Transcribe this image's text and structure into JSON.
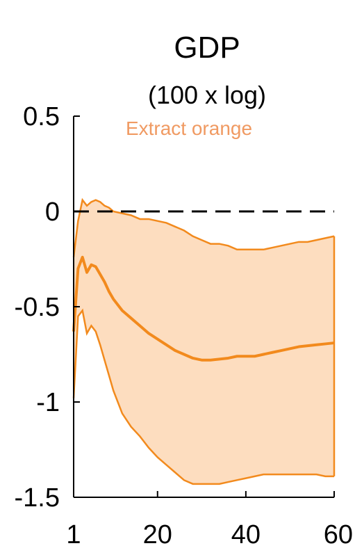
{
  "chart_data": {
    "type": "area",
    "title": "GDP",
    "subtitle": "(100 x log)",
    "xlabel": "",
    "ylabel": "",
    "xlim": [
      1,
      60
    ],
    "ylim": [
      -1.5,
      0.5
    ],
    "x_ticks": [
      {
        "value": 1,
        "label": "1"
      },
      {
        "value": 20,
        "label": "20"
      },
      {
        "value": 40,
        "label": "40"
      },
      {
        "value": 60,
        "label": "60"
      }
    ],
    "y_ticks": [
      {
        "value": 0.5,
        "label": "0.5"
      },
      {
        "value": 0,
        "label": "0"
      },
      {
        "value": -0.5,
        "label": "-0.5"
      },
      {
        "value": -1,
        "label": "-1"
      },
      {
        "value": -1.5,
        "label": "-1.5"
      }
    ],
    "grid": false,
    "zero_line": {
      "y": 0,
      "style": "dashed",
      "color": "#000000"
    },
    "annotation": {
      "text": "Extract orange",
      "color": "#F09A62"
    },
    "colors": {
      "line": "#F28A1D",
      "band_fill": "#FDDDBF"
    },
    "x": [
      1,
      2,
      3,
      4,
      5,
      6,
      7,
      8,
      9,
      10,
      12,
      14,
      16,
      18,
      20,
      22,
      24,
      26,
      28,
      30,
      32,
      34,
      36,
      38,
      40,
      42,
      44,
      46,
      48,
      50,
      52,
      54,
      56,
      58,
      60
    ],
    "series": [
      {
        "role": "median",
        "values": [
          -0.63,
          -0.3,
          -0.24,
          -0.32,
          -0.28,
          -0.29,
          -0.33,
          -0.37,
          -0.42,
          -0.46,
          -0.52,
          -0.56,
          -0.6,
          -0.64,
          -0.67,
          -0.7,
          -0.73,
          -0.75,
          -0.77,
          -0.78,
          -0.78,
          -0.775,
          -0.77,
          -0.76,
          -0.76,
          -0.76,
          -0.75,
          -0.74,
          -0.73,
          -0.72,
          -0.71,
          -0.705,
          -0.7,
          -0.695,
          -0.69
        ]
      },
      {
        "role": "upper",
        "values": [
          -0.24,
          -0.05,
          0.06,
          0.03,
          0.05,
          0.06,
          0.05,
          0.03,
          0.02,
          0.0,
          -0.01,
          -0.02,
          -0.04,
          -0.04,
          -0.05,
          -0.06,
          -0.08,
          -0.1,
          -0.13,
          -0.15,
          -0.17,
          -0.17,
          -0.18,
          -0.2,
          -0.2,
          -0.2,
          -0.2,
          -0.19,
          -0.18,
          -0.17,
          -0.16,
          -0.16,
          -0.15,
          -0.14,
          -0.13
        ]
      },
      {
        "role": "lower",
        "values": [
          -0.98,
          -0.55,
          -0.52,
          -0.64,
          -0.6,
          -0.63,
          -0.7,
          -0.78,
          -0.86,
          -0.94,
          -1.06,
          -1.13,
          -1.18,
          -1.24,
          -1.29,
          -1.33,
          -1.37,
          -1.41,
          -1.43,
          -1.43,
          -1.43,
          -1.43,
          -1.42,
          -1.41,
          -1.4,
          -1.39,
          -1.38,
          -1.38,
          -1.38,
          -1.38,
          -1.38,
          -1.38,
          -1.38,
          -1.39,
          -1.39
        ]
      }
    ]
  }
}
